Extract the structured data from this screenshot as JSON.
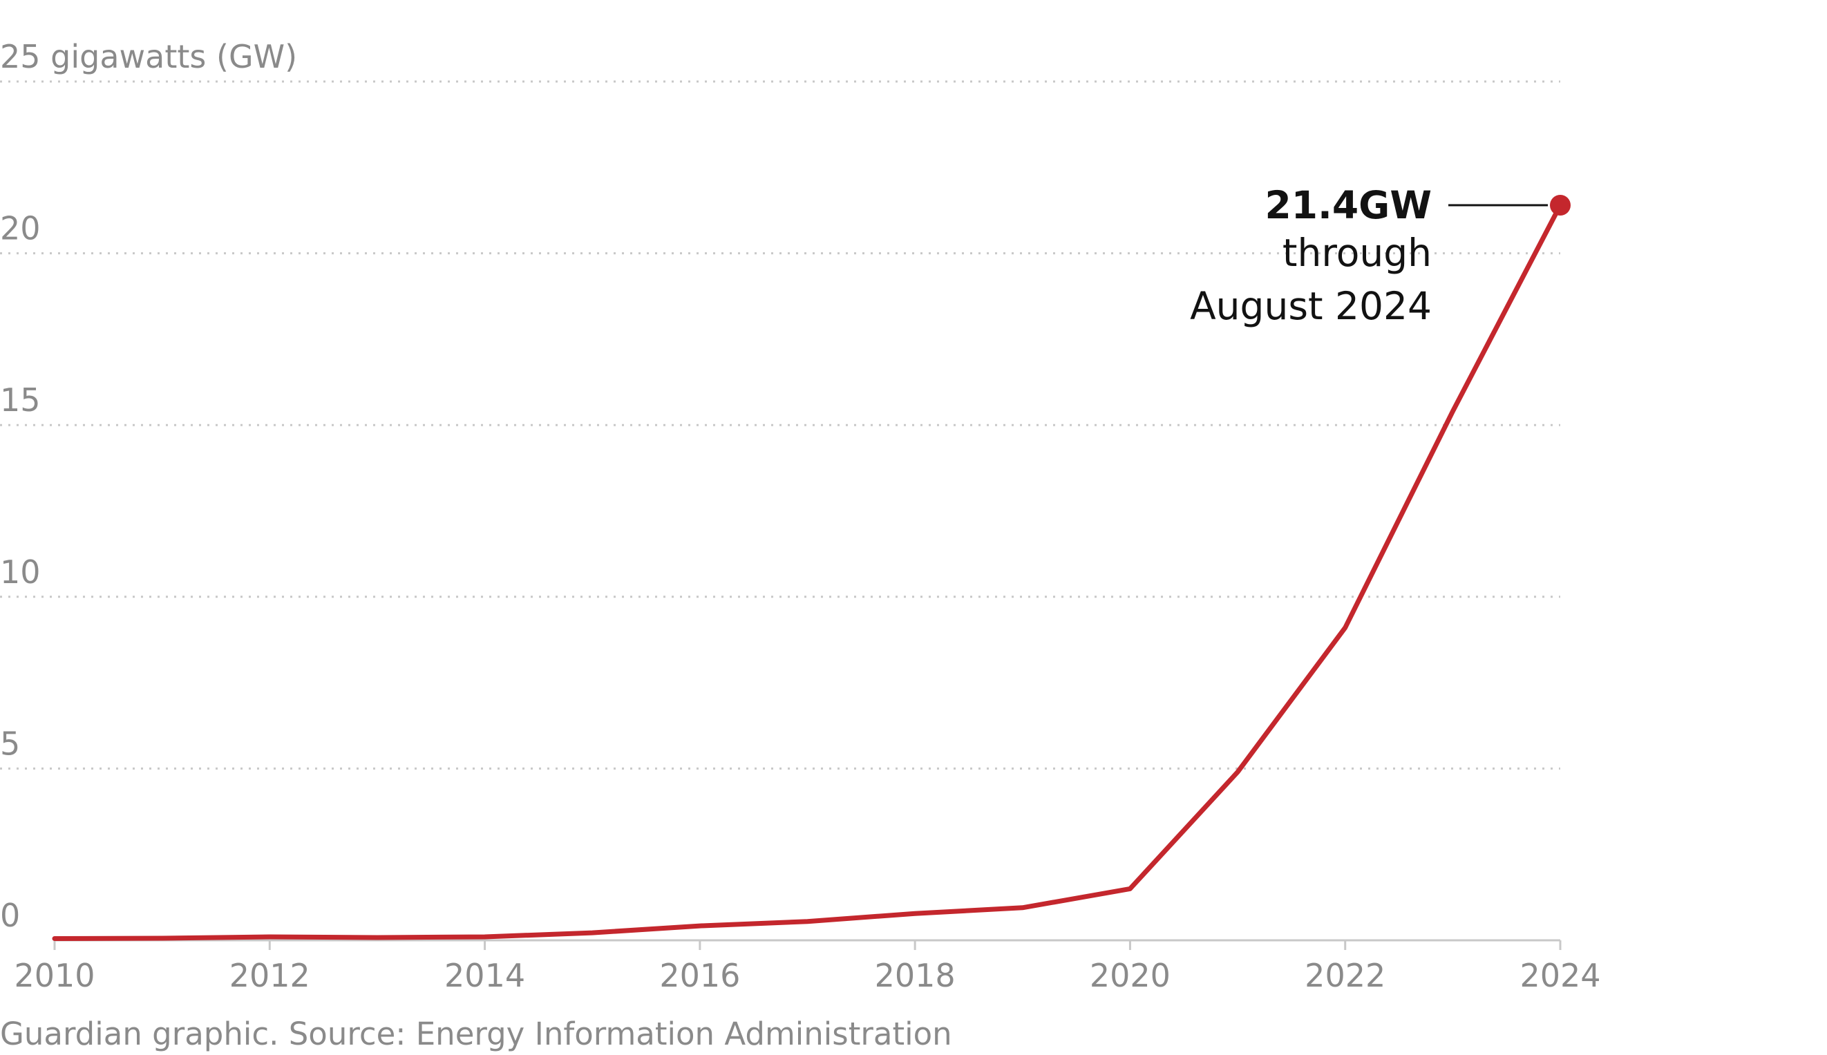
{
  "chart_data": {
    "type": "line",
    "ylabel": "gigawatts (GW)",
    "ylim": [
      0,
      25
    ],
    "xlim": [
      2010,
      2024
    ],
    "y_ticks": [
      0,
      5,
      10,
      15,
      20,
      25
    ],
    "y_tick_labels": [
      "0",
      "5",
      "10",
      "15",
      "20",
      "25 gigawatts (GW)"
    ],
    "x_ticks": [
      2010,
      2012,
      2014,
      2016,
      2018,
      2020,
      2022,
      2024
    ],
    "x_tick_labels": [
      "2010",
      "2012",
      "2014",
      "2016",
      "2018",
      "2020",
      "2022",
      "2024"
    ],
    "grid": true,
    "series": [
      {
        "color": "#c4272d",
        "x": [
          2010,
          2011,
          2012,
          2013,
          2014,
          2015,
          2016,
          2017,
          2018,
          2019,
          2020,
          2021,
          2022,
          2023,
          2024
        ],
        "values": [
          0.05,
          0.06,
          0.1,
          0.08,
          0.1,
          0.22,
          0.42,
          0.55,
          0.78,
          0.95,
          1.5,
          4.9,
          9.1,
          15.4,
          21.4
        ]
      }
    ],
    "annotation": {
      "x": 2024,
      "y": 21.4,
      "value_label": "21.4GW",
      "lines": [
        "through",
        "August 2024"
      ]
    },
    "source": "Guardian graphic. Source: Energy Information Administration"
  }
}
